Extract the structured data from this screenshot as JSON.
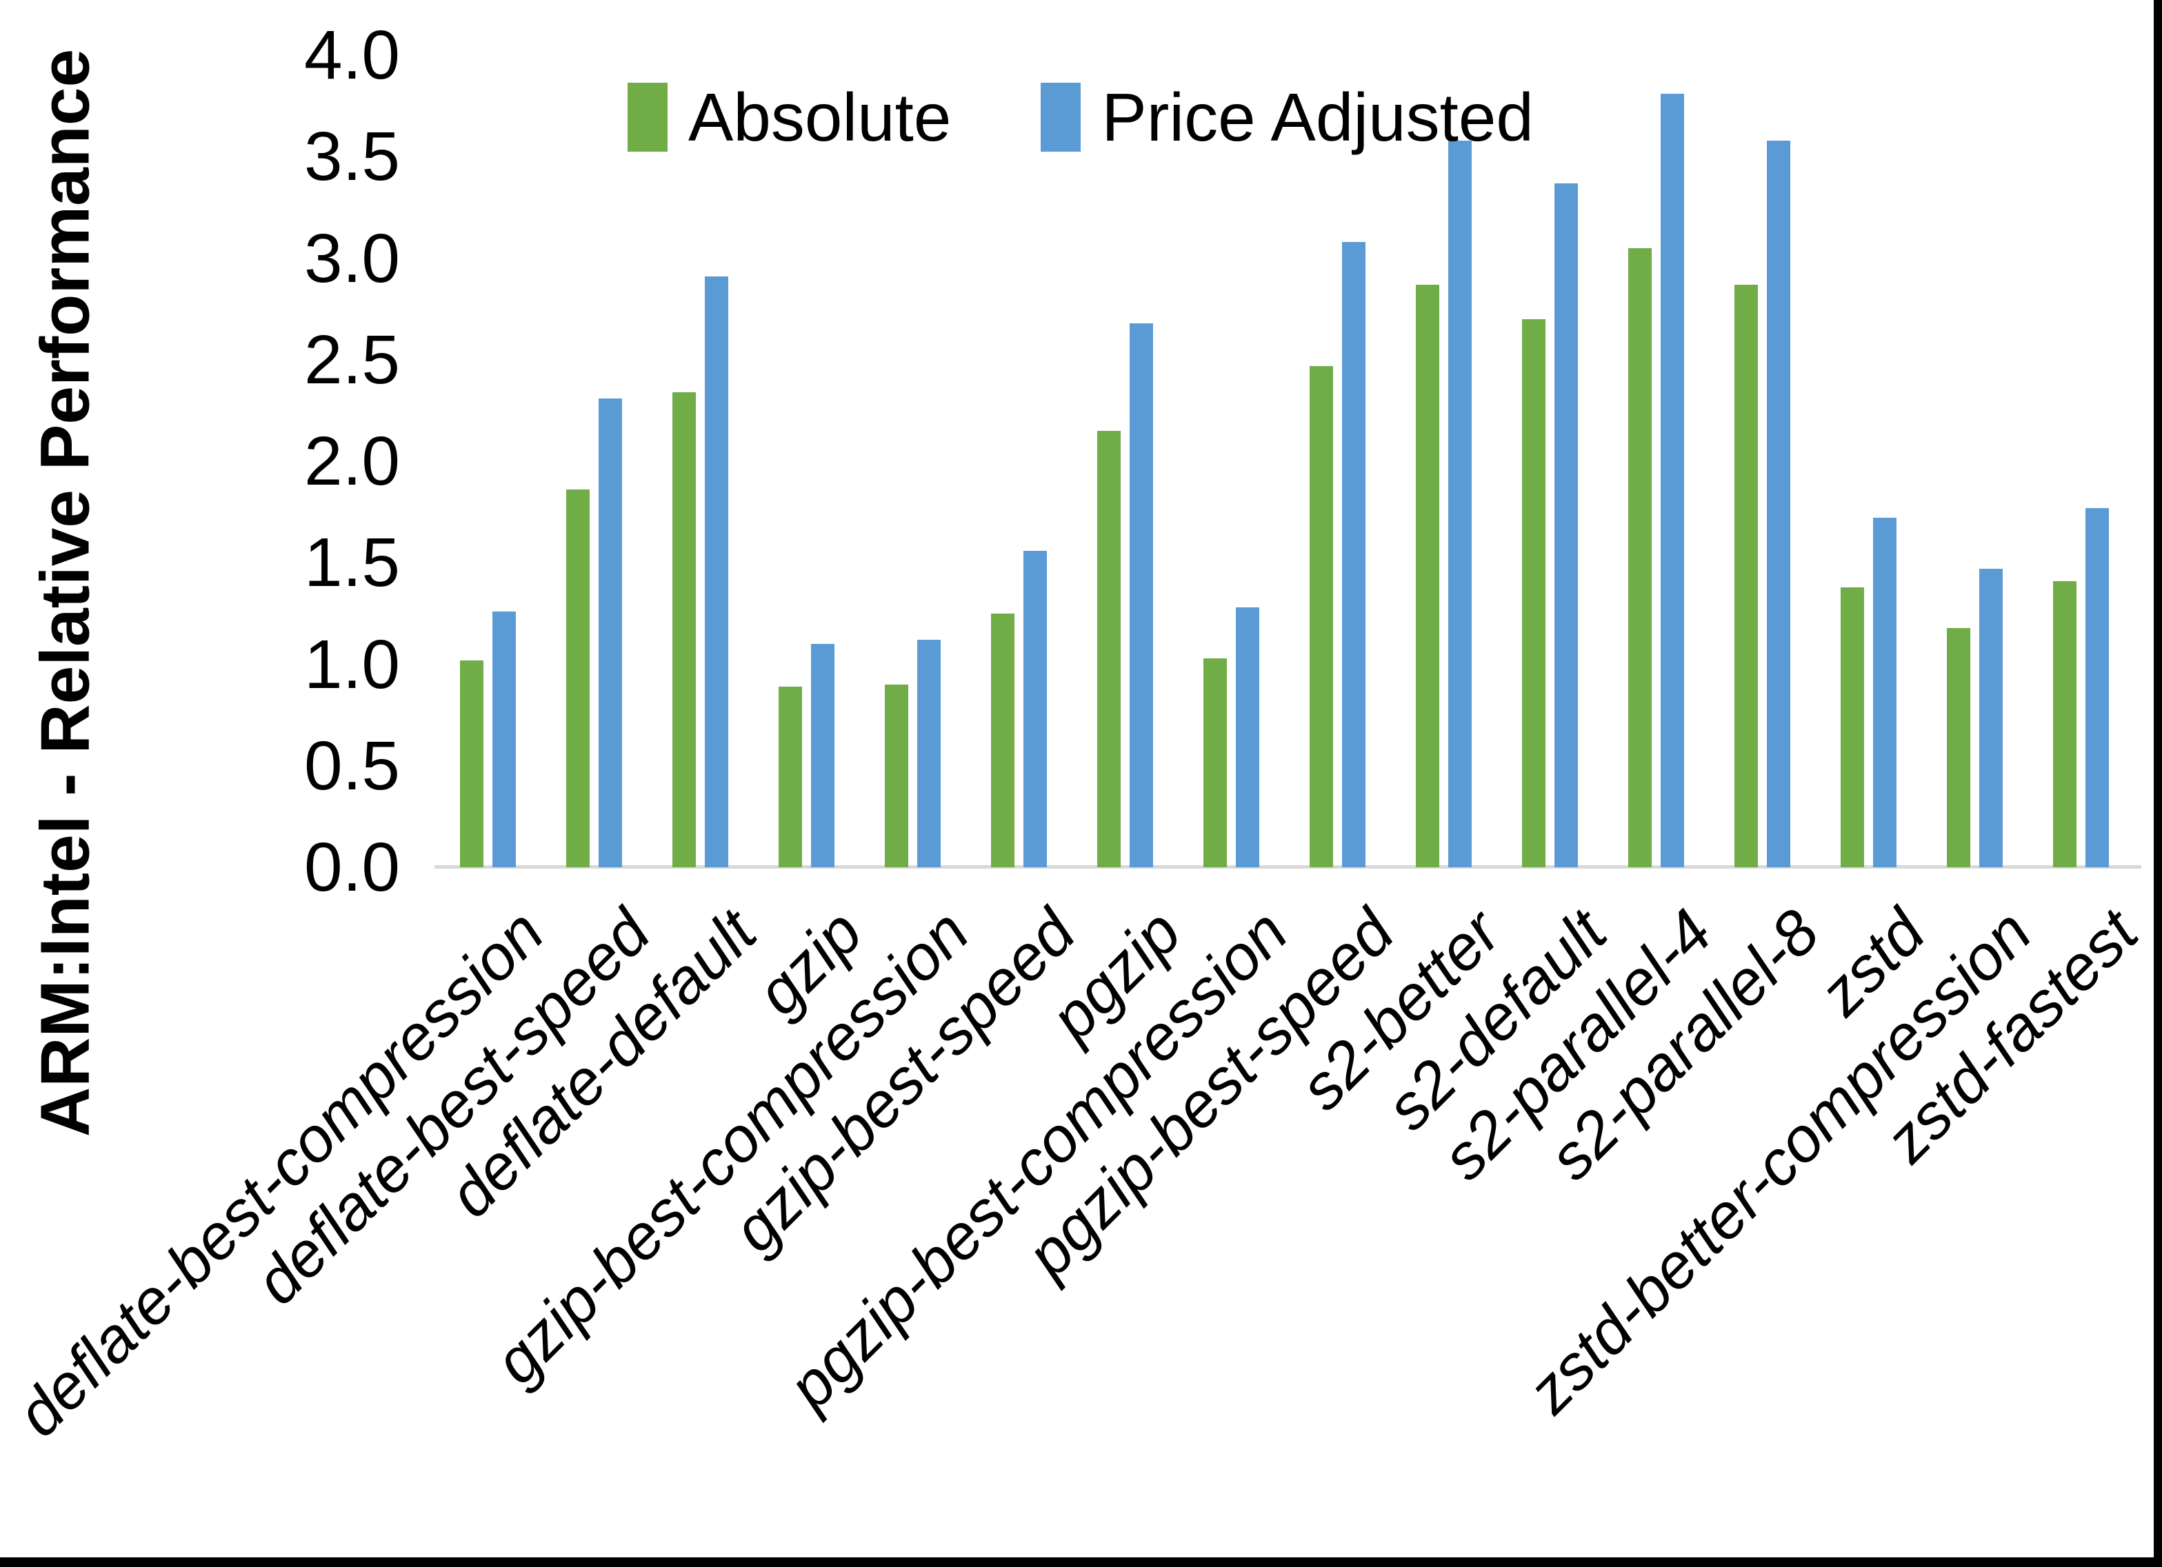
{
  "chart_data": {
    "type": "bar",
    "title": "",
    "xlabel": "",
    "ylabel": "ARM:Intel - Relative Performance",
    "ylim": [
      0.0,
      4.0
    ],
    "ytick_step": 0.5,
    "ytick_decimals": 1,
    "grid": false,
    "legend_position": "top-center",
    "categories": [
      "deflate-best-compression",
      "deflate-best-speed",
      "deflate-default",
      "gzip",
      "gzip-best-compression",
      "gzip-best-speed",
      "pgzip",
      "pgzip-best-compression",
      "pgzip-best-speed",
      "s2-better",
      "s2-default",
      "s2-parallel-4",
      "s2-parallel-8",
      "zstd",
      "zstd-better-compression",
      "zstd-fastest"
    ],
    "series": [
      {
        "name": "Absolute",
        "color": "#70AD47",
        "values": [
          1.02,
          1.86,
          2.34,
          0.89,
          0.9,
          1.25,
          2.15,
          1.03,
          2.47,
          2.87,
          2.7,
          3.05,
          2.87,
          1.38,
          1.18,
          1.41
        ]
      },
      {
        "name": "Price Adjusted",
        "color": "#5B9BD5",
        "values": [
          1.26,
          2.31,
          2.91,
          1.1,
          1.12,
          1.56,
          2.68,
          1.28,
          3.08,
          3.58,
          3.37,
          3.81,
          3.58,
          1.72,
          1.47,
          1.77
        ]
      }
    ],
    "axis_line_color": "#D9D9D9",
    "text_color": "#000000",
    "frame_border_color": "#000000"
  },
  "legend": {
    "absolute_label": "Absolute",
    "price_adjusted_label": "Price Adjusted"
  },
  "axis": {
    "y_title": "ARM:Intel - Relative Performance"
  }
}
